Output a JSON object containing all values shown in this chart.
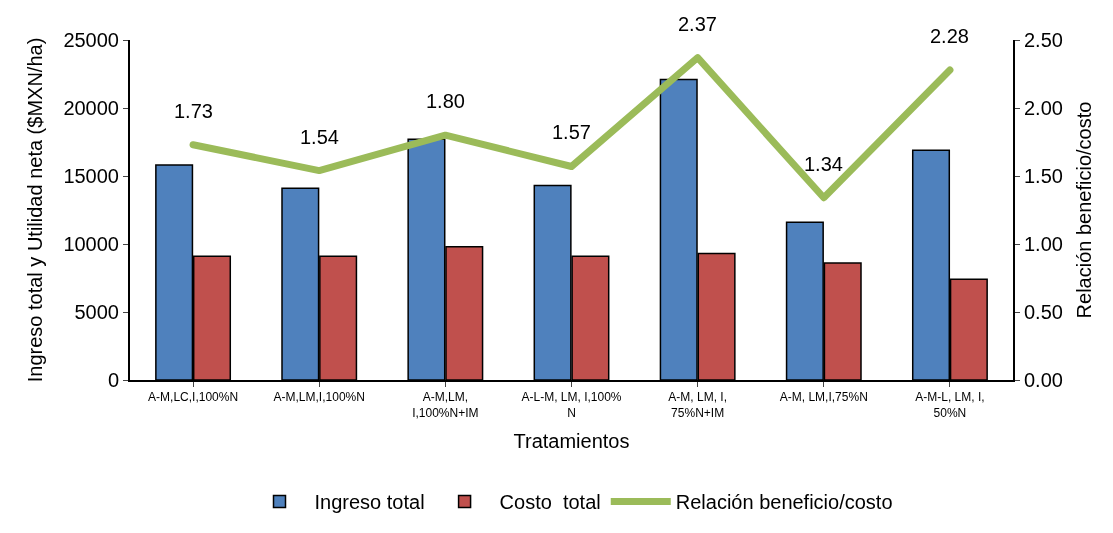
{
  "chart_data": {
    "type": "bar",
    "xlabel": "Tratamientos",
    "ylabel": "Ingreso total y Utilidad neta ($MXN/ha)",
    "y2label": "Relación beneficio/costo",
    "categories": [
      "A-M,LC,I,100%N",
      "A-M,LM,I,100%N",
      "A-M,LM,\nI,100%N+IM",
      "A-L-M, LM, I,100%\nN",
      "A-M, LM, I,\n75%N+IM",
      "A-M, LM,I,75%N",
      "A-M-L, LM, I,\n50%N"
    ],
    "series": [
      {
        "name": "Ingreso total",
        "color": "#4f81bd",
        "values": [
          15800,
          14100,
          17700,
          14300,
          22100,
          11600,
          16900
        ]
      },
      {
        "name": "Costo  total",
        "color": "#c0504d",
        "values": [
          9100,
          9100,
          9800,
          9100,
          9300,
          8600,
          7400
        ]
      },
      {
        "name": "Relación beneficio/costo",
        "type": "line",
        "axis": "y2",
        "color": "#9bbb59",
        "marker": "none",
        "data_labels": true,
        "values": [
          1.73,
          1.54,
          1.8,
          1.57,
          2.37,
          1.34,
          2.28
        ],
        "value_labels": [
          "1.73",
          "1.54",
          "1.80",
          "1.57",
          "2.37",
          "1.34",
          "2.28"
        ]
      }
    ],
    "ylim": [
      0,
      25000
    ],
    "yticks": [
      0,
      5000,
      10000,
      15000,
      20000,
      25000
    ],
    "y2lim": [
      0,
      2.5
    ],
    "y2ticks": [
      {
        "value": 0,
        "label": "0.00"
      },
      {
        "value": 0.5,
        "label": "0.50"
      },
      {
        "value": 1,
        "label": "1.00"
      },
      {
        "value": 1.5,
        "label": "1.50"
      },
      {
        "value": 2,
        "label": "2.00"
      },
      {
        "value": 2.5,
        "label": "2.50"
      }
    ],
    "legend": "bottom"
  }
}
